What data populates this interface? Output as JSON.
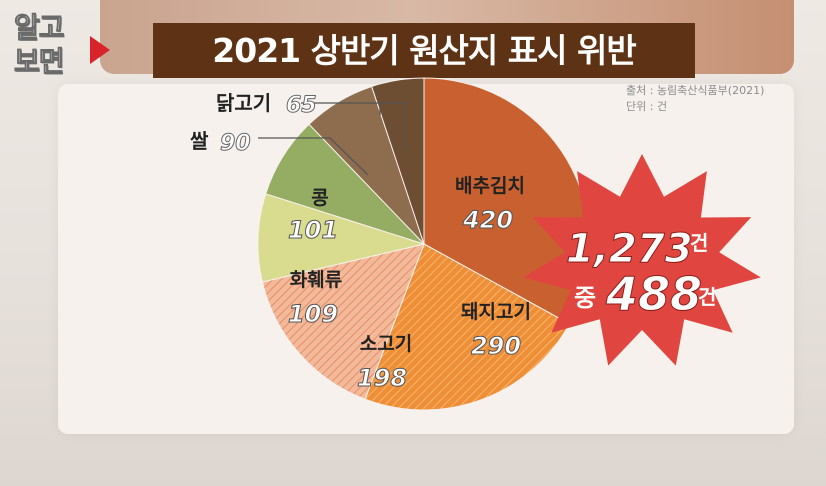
{
  "logo": {
    "line1": "알고",
    "line2": "보면"
  },
  "title": "2021 상반기 원산지 표시 위반",
  "source": {
    "line1": "출처 : 농림축산식품부(2021)",
    "line2": "단위 : 건"
  },
  "badge": {
    "total_value": "1,273",
    "total_unit": "건",
    "sub_prefix": "중",
    "sub_value": "488",
    "sub_unit": "건",
    "color": "#e0463f"
  },
  "chart_data": {
    "type": "pie",
    "unit": "건",
    "slices": [
      {
        "label": "배추김치",
        "value": 420,
        "color": "#c9602f"
      },
      {
        "label": "돼지고기",
        "value": 290,
        "color": "#ee8f38",
        "pattern": "hatched"
      },
      {
        "label": "소고기",
        "value": 198,
        "color": "#f2b99a",
        "pattern": "hatched"
      },
      {
        "label": "화훼류",
        "value": 109,
        "color": "#d9dc8e"
      },
      {
        "label": "콩",
        "value": 101,
        "color": "#94ad62"
      },
      {
        "label": "쌀",
        "value": 90,
        "color": "#8e6d4f"
      },
      {
        "label": "닭고기",
        "value": 65,
        "color": "#6e4e33"
      }
    ]
  }
}
